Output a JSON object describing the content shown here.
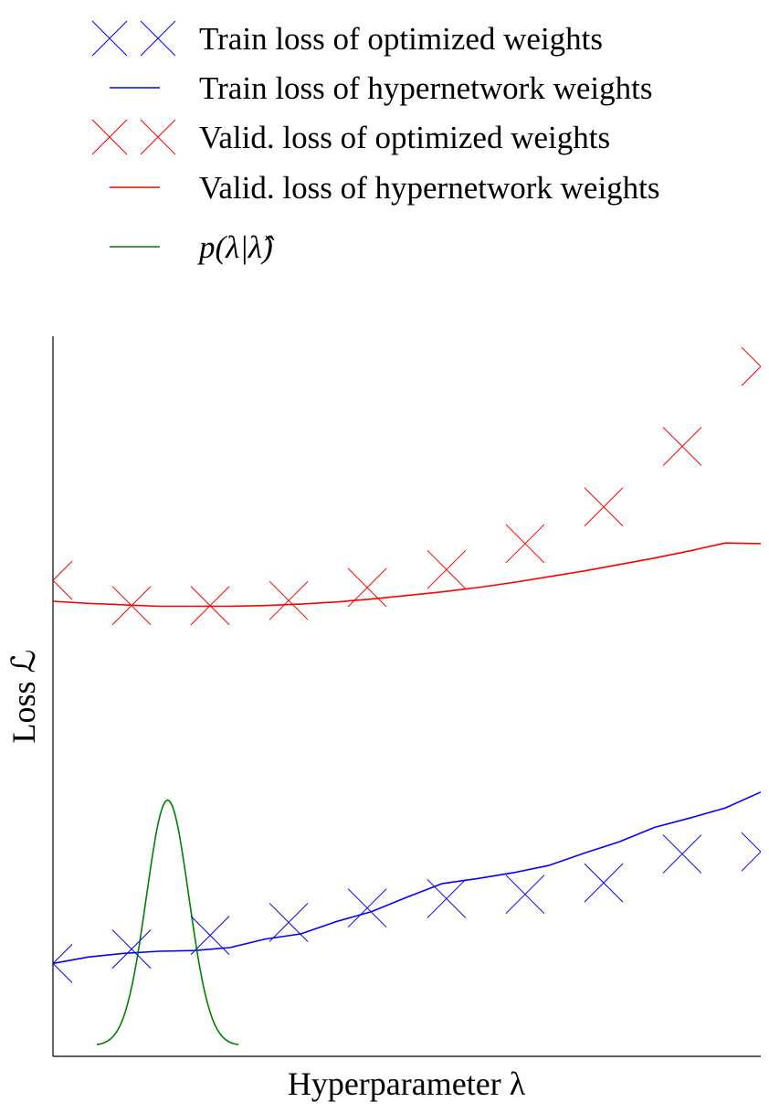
{
  "chart_data": {
    "type": "scatter",
    "xlabel": "Hyperparameter λ",
    "ylabel": "Loss ℒ",
    "xlim": [
      0,
      1
    ],
    "ylim": [
      0,
      1
    ],
    "ticks_shown": false,
    "grid": false,
    "legend_position": "top",
    "legend": [
      {
        "series": "train_opt",
        "label": "Train loss of optimized weights",
        "marker": "x",
        "color": "#0000ff"
      },
      {
        "series": "train_hyper",
        "label": "Train loss of hypernetwork weights",
        "marker": "line",
        "color": "#0000ff"
      },
      {
        "series": "valid_opt",
        "label": "Valid. loss of optimized weights",
        "marker": "x",
        "color": "#ff0000"
      },
      {
        "series": "valid_hyper",
        "label": "Valid. loss of hypernetwork weights",
        "marker": "line",
        "color": "#ff0000"
      },
      {
        "series": "density",
        "label": "p(λ|λ̂)",
        "marker": "line",
        "color": "#008000"
      }
    ],
    "series": {
      "train_opt": {
        "x": [
          0.0,
          0.111,
          0.222,
          0.333,
          0.444,
          0.556,
          0.667,
          0.778,
          0.889,
          1.0
        ],
        "y": [
          0.129,
          0.149,
          0.168,
          0.186,
          0.206,
          0.219,
          0.225,
          0.241,
          0.281,
          0.284
        ]
      },
      "valid_opt": {
        "x": [
          0.0,
          0.111,
          0.222,
          0.333,
          0.444,
          0.556,
          0.667,
          0.778,
          0.889,
          1.0
        ],
        "y": [
          0.661,
          0.626,
          0.626,
          0.633,
          0.651,
          0.676,
          0.712,
          0.763,
          0.847,
          0.958
        ]
      },
      "train_hyper": {
        "x": [
          0.0,
          0.05,
          0.1,
          0.15,
          0.2,
          0.25,
          0.3,
          0.35,
          0.4,
          0.45,
          0.5,
          0.55,
          0.6,
          0.65,
          0.7,
          0.75,
          0.8,
          0.85,
          0.9,
          0.95,
          1.0
        ],
        "y": [
          0.129,
          0.138,
          0.143,
          0.146,
          0.147,
          0.151,
          0.163,
          0.17,
          0.187,
          0.201,
          0.221,
          0.24,
          0.247,
          0.255,
          0.265,
          0.282,
          0.298,
          0.318,
          0.331,
          0.345,
          0.367
        ]
      },
      "valid_hyper": {
        "x": [
          0.0,
          0.05,
          0.1,
          0.15,
          0.2,
          0.25,
          0.3,
          0.35,
          0.4,
          0.45,
          0.5,
          0.55,
          0.6,
          0.65,
          0.7,
          0.75,
          0.8,
          0.85,
          0.9,
          0.95,
          1.0
        ],
        "y": [
          0.632,
          0.629,
          0.627,
          0.625,
          0.625,
          0.625,
          0.626,
          0.628,
          0.631,
          0.635,
          0.64,
          0.645,
          0.651,
          0.658,
          0.666,
          0.674,
          0.683,
          0.692,
          0.702,
          0.713,
          0.712
        ]
      },
      "density": {
        "mean": 0.162,
        "std": 0.03,
        "x_range": [
          0.062,
          0.262
        ],
        "y_base": 0.015,
        "y_peak": 0.356
      }
    }
  }
}
